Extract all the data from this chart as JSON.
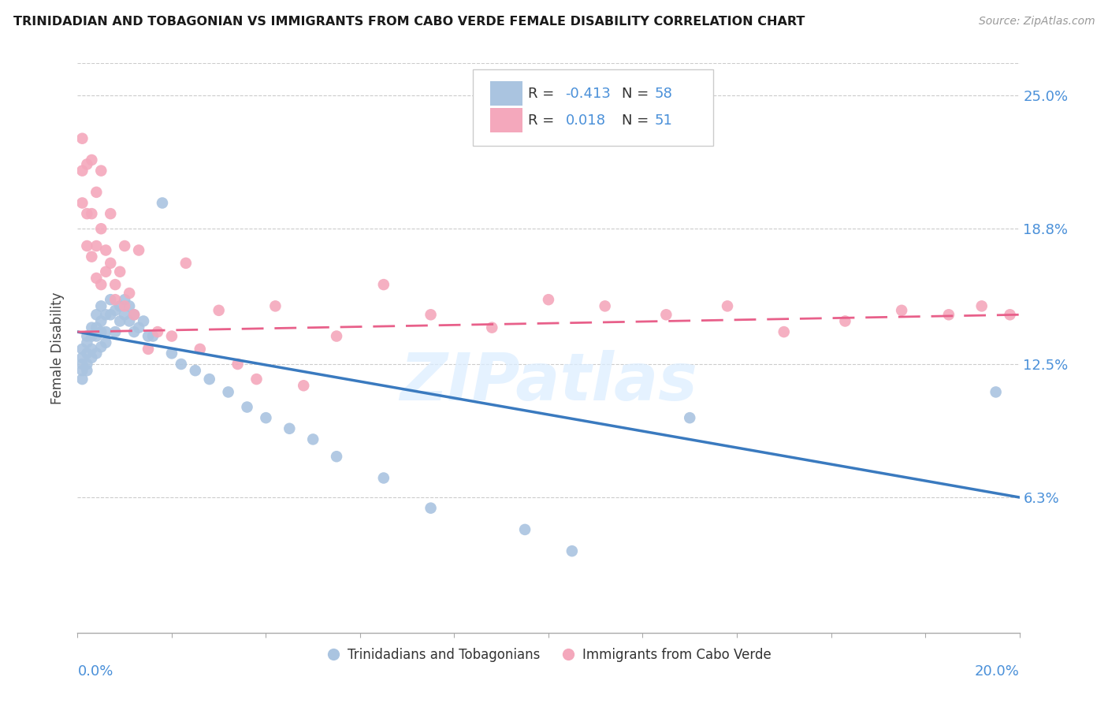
{
  "title": "TRINIDADIAN AND TOBAGONIAN VS IMMIGRANTS FROM CABO VERDE FEMALE DISABILITY CORRELATION CHART",
  "source": "Source: ZipAtlas.com",
  "ylabel": "Female Disability",
  "xlim": [
    0.0,
    0.2
  ],
  "ylim": [
    0.0,
    0.265
  ],
  "yticks": [
    0.063,
    0.125,
    0.188,
    0.25
  ],
  "ytick_labels": [
    "6.3%",
    "12.5%",
    "18.8%",
    "25.0%"
  ],
  "blue_scatter_color": "#aac4e0",
  "pink_scatter_color": "#f4a8bc",
  "blue_line_color": "#3a7abf",
  "pink_line_color": "#e8608a",
  "blue_points_x": [
    0.001,
    0.001,
    0.001,
    0.001,
    0.001,
    0.002,
    0.002,
    0.002,
    0.002,
    0.002,
    0.003,
    0.003,
    0.003,
    0.003,
    0.004,
    0.004,
    0.004,
    0.004,
    0.005,
    0.005,
    0.005,
    0.005,
    0.006,
    0.006,
    0.006,
    0.007,
    0.007,
    0.008,
    0.008,
    0.009,
    0.009,
    0.01,
    0.01,
    0.011,
    0.011,
    0.012,
    0.012,
    0.013,
    0.014,
    0.015,
    0.016,
    0.018,
    0.02,
    0.022,
    0.025,
    0.028,
    0.032,
    0.036,
    0.04,
    0.045,
    0.05,
    0.055,
    0.065,
    0.075,
    0.095,
    0.105,
    0.13,
    0.195
  ],
  "blue_points_y": [
    0.132,
    0.128,
    0.125,
    0.122,
    0.118,
    0.138,
    0.135,
    0.13,
    0.125,
    0.122,
    0.142,
    0.138,
    0.132,
    0.128,
    0.148,
    0.142,
    0.138,
    0.13,
    0.152,
    0.145,
    0.14,
    0.133,
    0.148,
    0.14,
    0.135,
    0.155,
    0.148,
    0.15,
    0.14,
    0.152,
    0.145,
    0.155,
    0.148,
    0.152,
    0.145,
    0.148,
    0.14,
    0.142,
    0.145,
    0.138,
    0.138,
    0.2,
    0.13,
    0.125,
    0.122,
    0.118,
    0.112,
    0.105,
    0.1,
    0.095,
    0.09,
    0.082,
    0.072,
    0.058,
    0.048,
    0.038,
    0.1,
    0.112
  ],
  "pink_points_x": [
    0.001,
    0.001,
    0.001,
    0.002,
    0.002,
    0.002,
    0.003,
    0.003,
    0.003,
    0.004,
    0.004,
    0.004,
    0.005,
    0.005,
    0.005,
    0.006,
    0.006,
    0.007,
    0.007,
    0.008,
    0.008,
    0.009,
    0.01,
    0.01,
    0.011,
    0.012,
    0.013,
    0.015,
    0.017,
    0.02,
    0.023,
    0.026,
    0.03,
    0.034,
    0.038,
    0.042,
    0.048,
    0.055,
    0.065,
    0.075,
    0.088,
    0.1,
    0.112,
    0.125,
    0.138,
    0.15,
    0.163,
    0.175,
    0.185,
    0.192,
    0.198
  ],
  "pink_points_y": [
    0.23,
    0.215,
    0.2,
    0.218,
    0.195,
    0.18,
    0.22,
    0.195,
    0.175,
    0.205,
    0.18,
    0.165,
    0.215,
    0.188,
    0.162,
    0.178,
    0.168,
    0.195,
    0.172,
    0.155,
    0.162,
    0.168,
    0.18,
    0.152,
    0.158,
    0.148,
    0.178,
    0.132,
    0.14,
    0.138,
    0.172,
    0.132,
    0.15,
    0.125,
    0.118,
    0.152,
    0.115,
    0.138,
    0.162,
    0.148,
    0.142,
    0.155,
    0.152,
    0.148,
    0.152,
    0.14,
    0.145,
    0.15,
    0.148,
    0.152,
    0.148
  ],
  "blue_line_x0": 0.0,
  "blue_line_y0": 0.14,
  "blue_line_x1": 0.2,
  "blue_line_y1": 0.063,
  "pink_line_x0": 0.0,
  "pink_line_y0": 0.14,
  "pink_line_x1": 0.2,
  "pink_line_y1": 0.148
}
